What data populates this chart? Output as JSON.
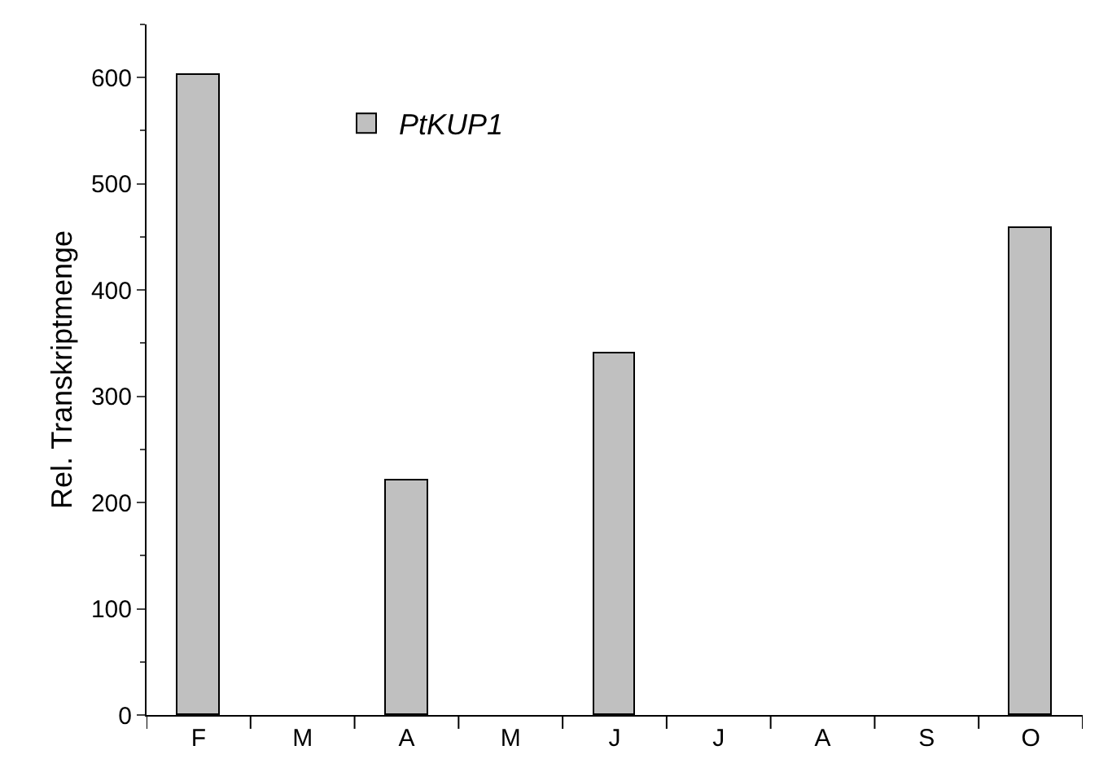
{
  "chart_data": {
    "type": "bar",
    "ylabel": "Rel. Transkriptmenge",
    "categories": [
      "F",
      "M",
      "A",
      "M",
      "J",
      "J",
      "A",
      "S",
      "O"
    ],
    "series": [
      {
        "name": "PtKUP1",
        "color": "#c0c0c0",
        "values": [
          602,
          null,
          220,
          null,
          341,
          null,
          null,
          null,
          459
        ]
      }
    ],
    "ylim": [
      0,
      650
    ],
    "yticks": [
      0,
      100,
      200,
      300,
      400,
      500,
      600
    ],
    "grid": false,
    "legend": "top left"
  }
}
